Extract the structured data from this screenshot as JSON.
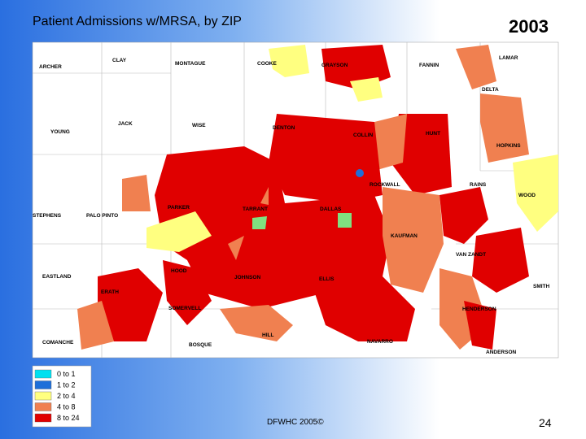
{
  "header": {
    "title": "Patient Admissions w/MRSA, by ZIP",
    "year": "2003"
  },
  "map": {
    "counties": [
      "ARCHER",
      "CLAY",
      "MONTAGUE",
      "COOKE",
      "GRAYSON",
      "FANNIN",
      "LAMAR",
      "DELTA",
      "YOUNG",
      "JACK",
      "WISE",
      "DENTON",
      "COLLIN",
      "HUNT",
      "HOPKINS",
      "RAINS",
      "ROCKWALL",
      "WOOD",
      "STEPHENS",
      "PALO PINTO",
      "PARKER",
      "TARRANT",
      "DALLAS",
      "KAUFMAN",
      "VAN ZANDT",
      "EASTLAND",
      "HOOD",
      "JOHNSON",
      "ELLIS",
      "SMITH",
      "ERATH",
      "SOMERVELL",
      "HENDERSON",
      "HILL",
      "NAVARRO",
      "COMANCHE",
      "BOSQUE",
      "ANDERSON"
    ]
  },
  "legend": [
    {
      "label": "0 to 1",
      "color": "#00e0f0"
    },
    {
      "label": "1 to 2",
      "color": "#1e6fd9"
    },
    {
      "label": "2 to 4",
      "color": "#ffff80"
    },
    {
      "label": "4 to 8",
      "color": "#f08050"
    },
    {
      "label": "8 to 24",
      "color": "#e00000"
    }
  ],
  "footer": {
    "credit": "DFWHC 2005©",
    "page": "24"
  }
}
